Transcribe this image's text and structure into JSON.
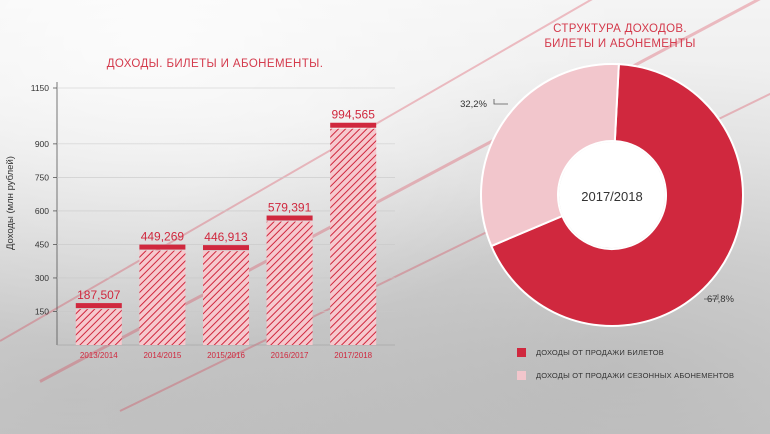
{
  "colors": {
    "accent": "#d0283e",
    "bar_light": "#f3b9c0",
    "donut_light": "#f2c6cc",
    "axis_text": "#333333"
  },
  "chart_data": [
    {
      "type": "bar",
      "title": "ДОХОДЫ. БИЛЕТЫ И АБОНЕМЕНТЫ.",
      "ylabel": "Доходы (млн рублей)",
      "xlabel": "",
      "categories": [
        "2013/2014",
        "2014/2015",
        "2015/2016",
        "2016/2017",
        "2017/2018"
      ],
      "values": [
        187.507,
        449.269,
        446.913,
        579.391,
        994.565
      ],
      "value_labels": [
        "187,507",
        "449,269",
        "446,913",
        "579,391",
        "994,565"
      ],
      "yticks": [
        150,
        300,
        450,
        600,
        750,
        900,
        1150
      ],
      "ylim": [
        0,
        1150
      ],
      "grid": true
    },
    {
      "type": "pie",
      "variant": "donut",
      "title_line1": "СТРУКТУРА ДОХОДОВ.",
      "title_line2": "БИЛЕТЫ И АБОНЕМЕНТЫ",
      "center_label": "2017/2018",
      "slices": [
        {
          "name": "ДОХОДЫ ОТ ПРОДАЖИ БИЛЕТОВ",
          "value": 67.8,
          "label": "67,8%"
        },
        {
          "name": "ДОХОДЫ ОТ ПРОДАЖИ СЕЗОННЫХ АБОНЕМЕНТОВ",
          "value": 32.2,
          "label": "32,2%"
        }
      ],
      "legend_position": "bottom-right"
    }
  ]
}
